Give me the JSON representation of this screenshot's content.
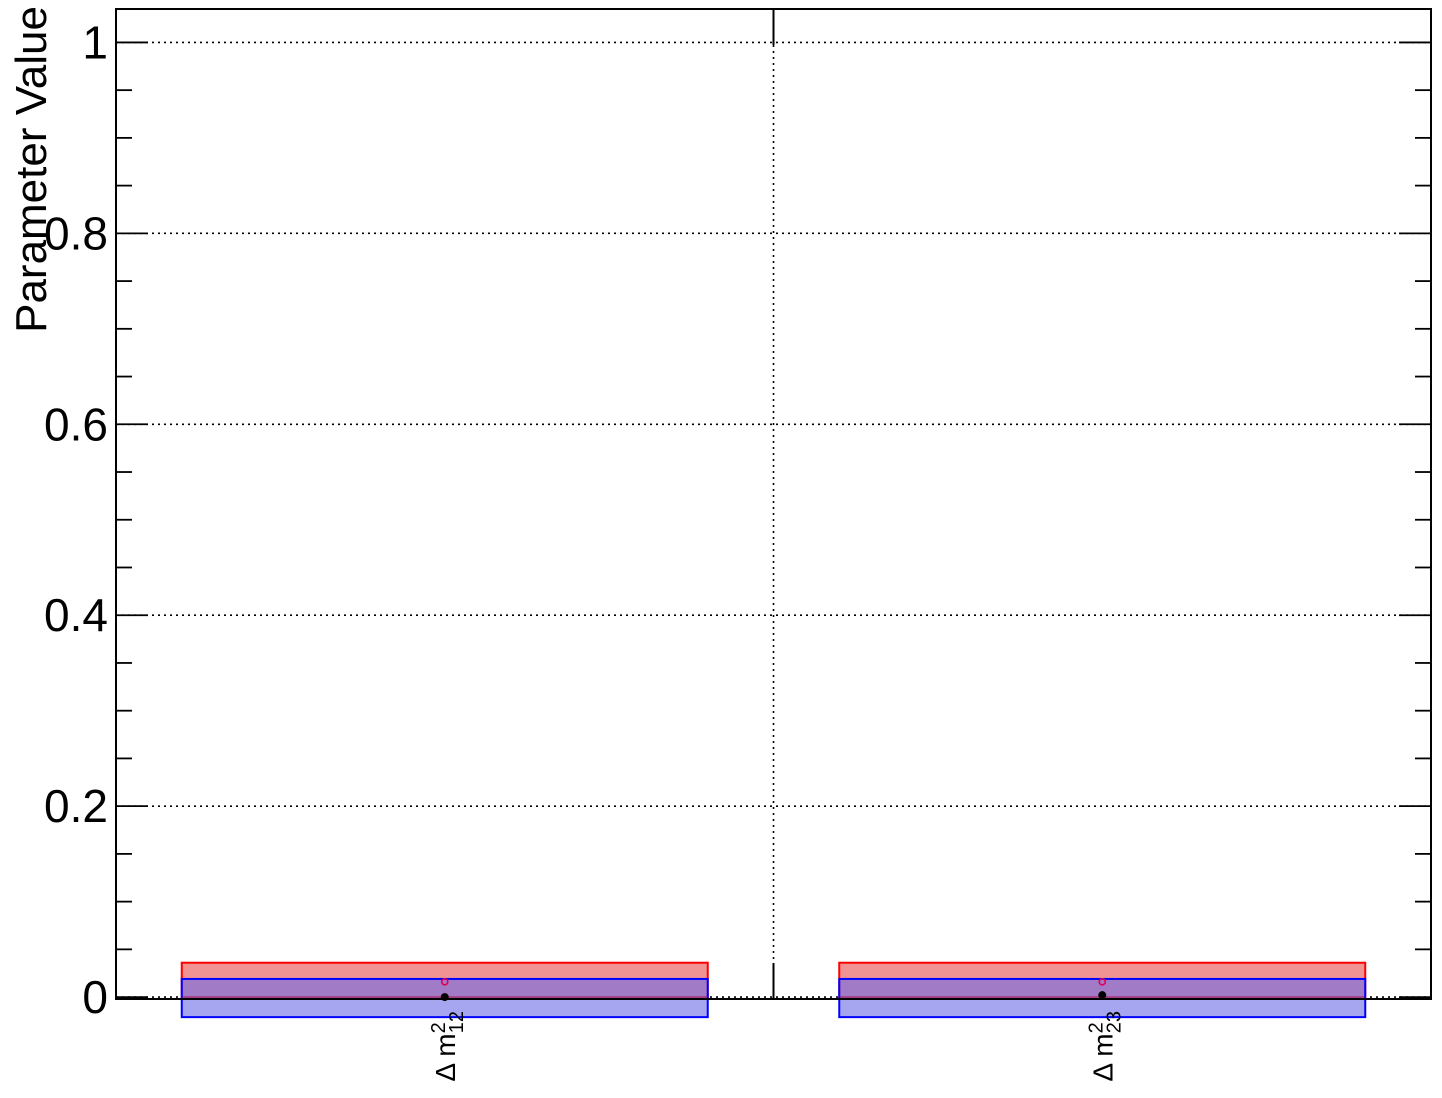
{
  "chart_data": {
    "type": "scatter",
    "ylabel": "Parameter Value",
    "xlabel": "",
    "ylim": [
      -0.002,
      1.035
    ],
    "yticks": [
      0,
      0.2,
      0.4,
      0.6,
      0.8,
      1
    ],
    "ytick_labels": [
      "0",
      "0.2",
      "0.4",
      "0.6",
      "0.8",
      "1"
    ],
    "y_minor_step": 0.05,
    "grid": true,
    "categories": [
      {
        "symbol": "Δ m",
        "sup": "2",
        "sub": "12"
      },
      {
        "symbol": "Δ m",
        "sup": "2",
        "sub": "23"
      }
    ],
    "bands": [
      {
        "color": "#ff0000",
        "fill": "#f08080",
        "lower": [
          0,
          0
        ],
        "upper": [
          0.036,
          0.036
        ]
      },
      {
        "color": "#0000ff",
        "fill": "#6a6ae6",
        "lower": [
          -0.021,
          -0.021
        ],
        "upper": [
          0.019,
          0.019
        ]
      }
    ],
    "series": [
      {
        "marker": "open-circle",
        "color": "#e0005a",
        "values": [
          0.016,
          0.016
        ]
      },
      {
        "marker": "filled-circle",
        "color": "#000000",
        "values": [
          0.0,
          0.002
        ]
      }
    ]
  }
}
